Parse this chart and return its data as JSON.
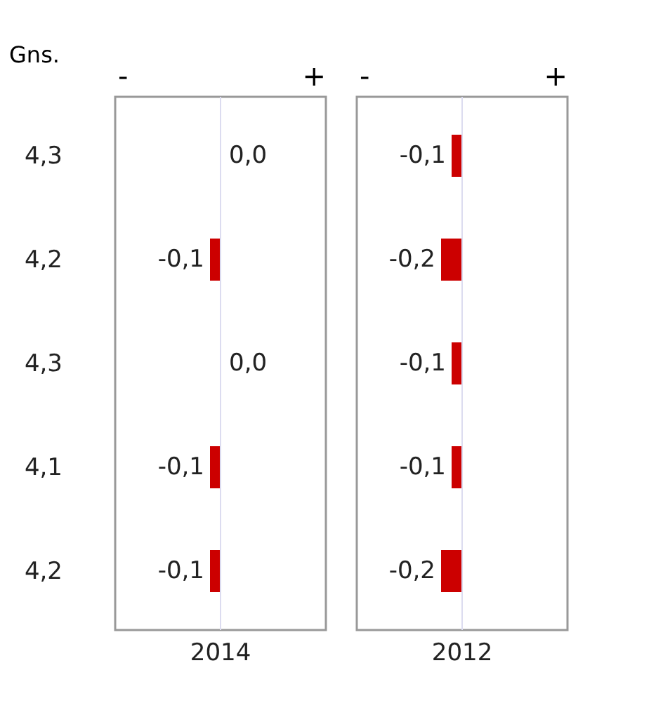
{
  "chart_data": [
    {
      "type": "bar",
      "orientation": "horizontal",
      "ylabel": "Gns.",
      "xlabel": "2014",
      "annotations": [
        "-",
        "+"
      ],
      "categories": [
        "4,3",
        "4,2",
        "4,3",
        "4,1",
        "4,2"
      ],
      "values": [
        0.0,
        -0.1,
        0.0,
        -0.1,
        -0.1
      ],
      "value_labels": [
        "0,0",
        "-0,1",
        "0,0",
        "-0,1",
        "-0,1"
      ],
      "color": "#cc0000",
      "xlim": [
        -1,
        1
      ],
      "ref_lines": [
        {
          "axis": "x",
          "value": 0,
          "color": "#dcdcf0"
        }
      ]
    },
    {
      "type": "bar",
      "orientation": "horizontal",
      "xlabel": "2012",
      "annotations": [
        "-",
        "+"
      ],
      "categories": [
        "4,3",
        "4,2",
        "4,3",
        "4,1",
        "4,2"
      ],
      "values": [
        -0.1,
        -0.2,
        -0.1,
        -0.1,
        -0.2
      ],
      "value_labels": [
        "-0,1",
        "-0,2",
        "-0,1",
        "-0,1",
        "-0,2"
      ],
      "color": "#cc0000",
      "xlim": [
        -1,
        1
      ],
      "ref_lines": [
        {
          "axis": "x",
          "value": 0,
          "color": "#dcdcf0"
        }
      ],
      "tick_labels": "x"
    }
  ]
}
